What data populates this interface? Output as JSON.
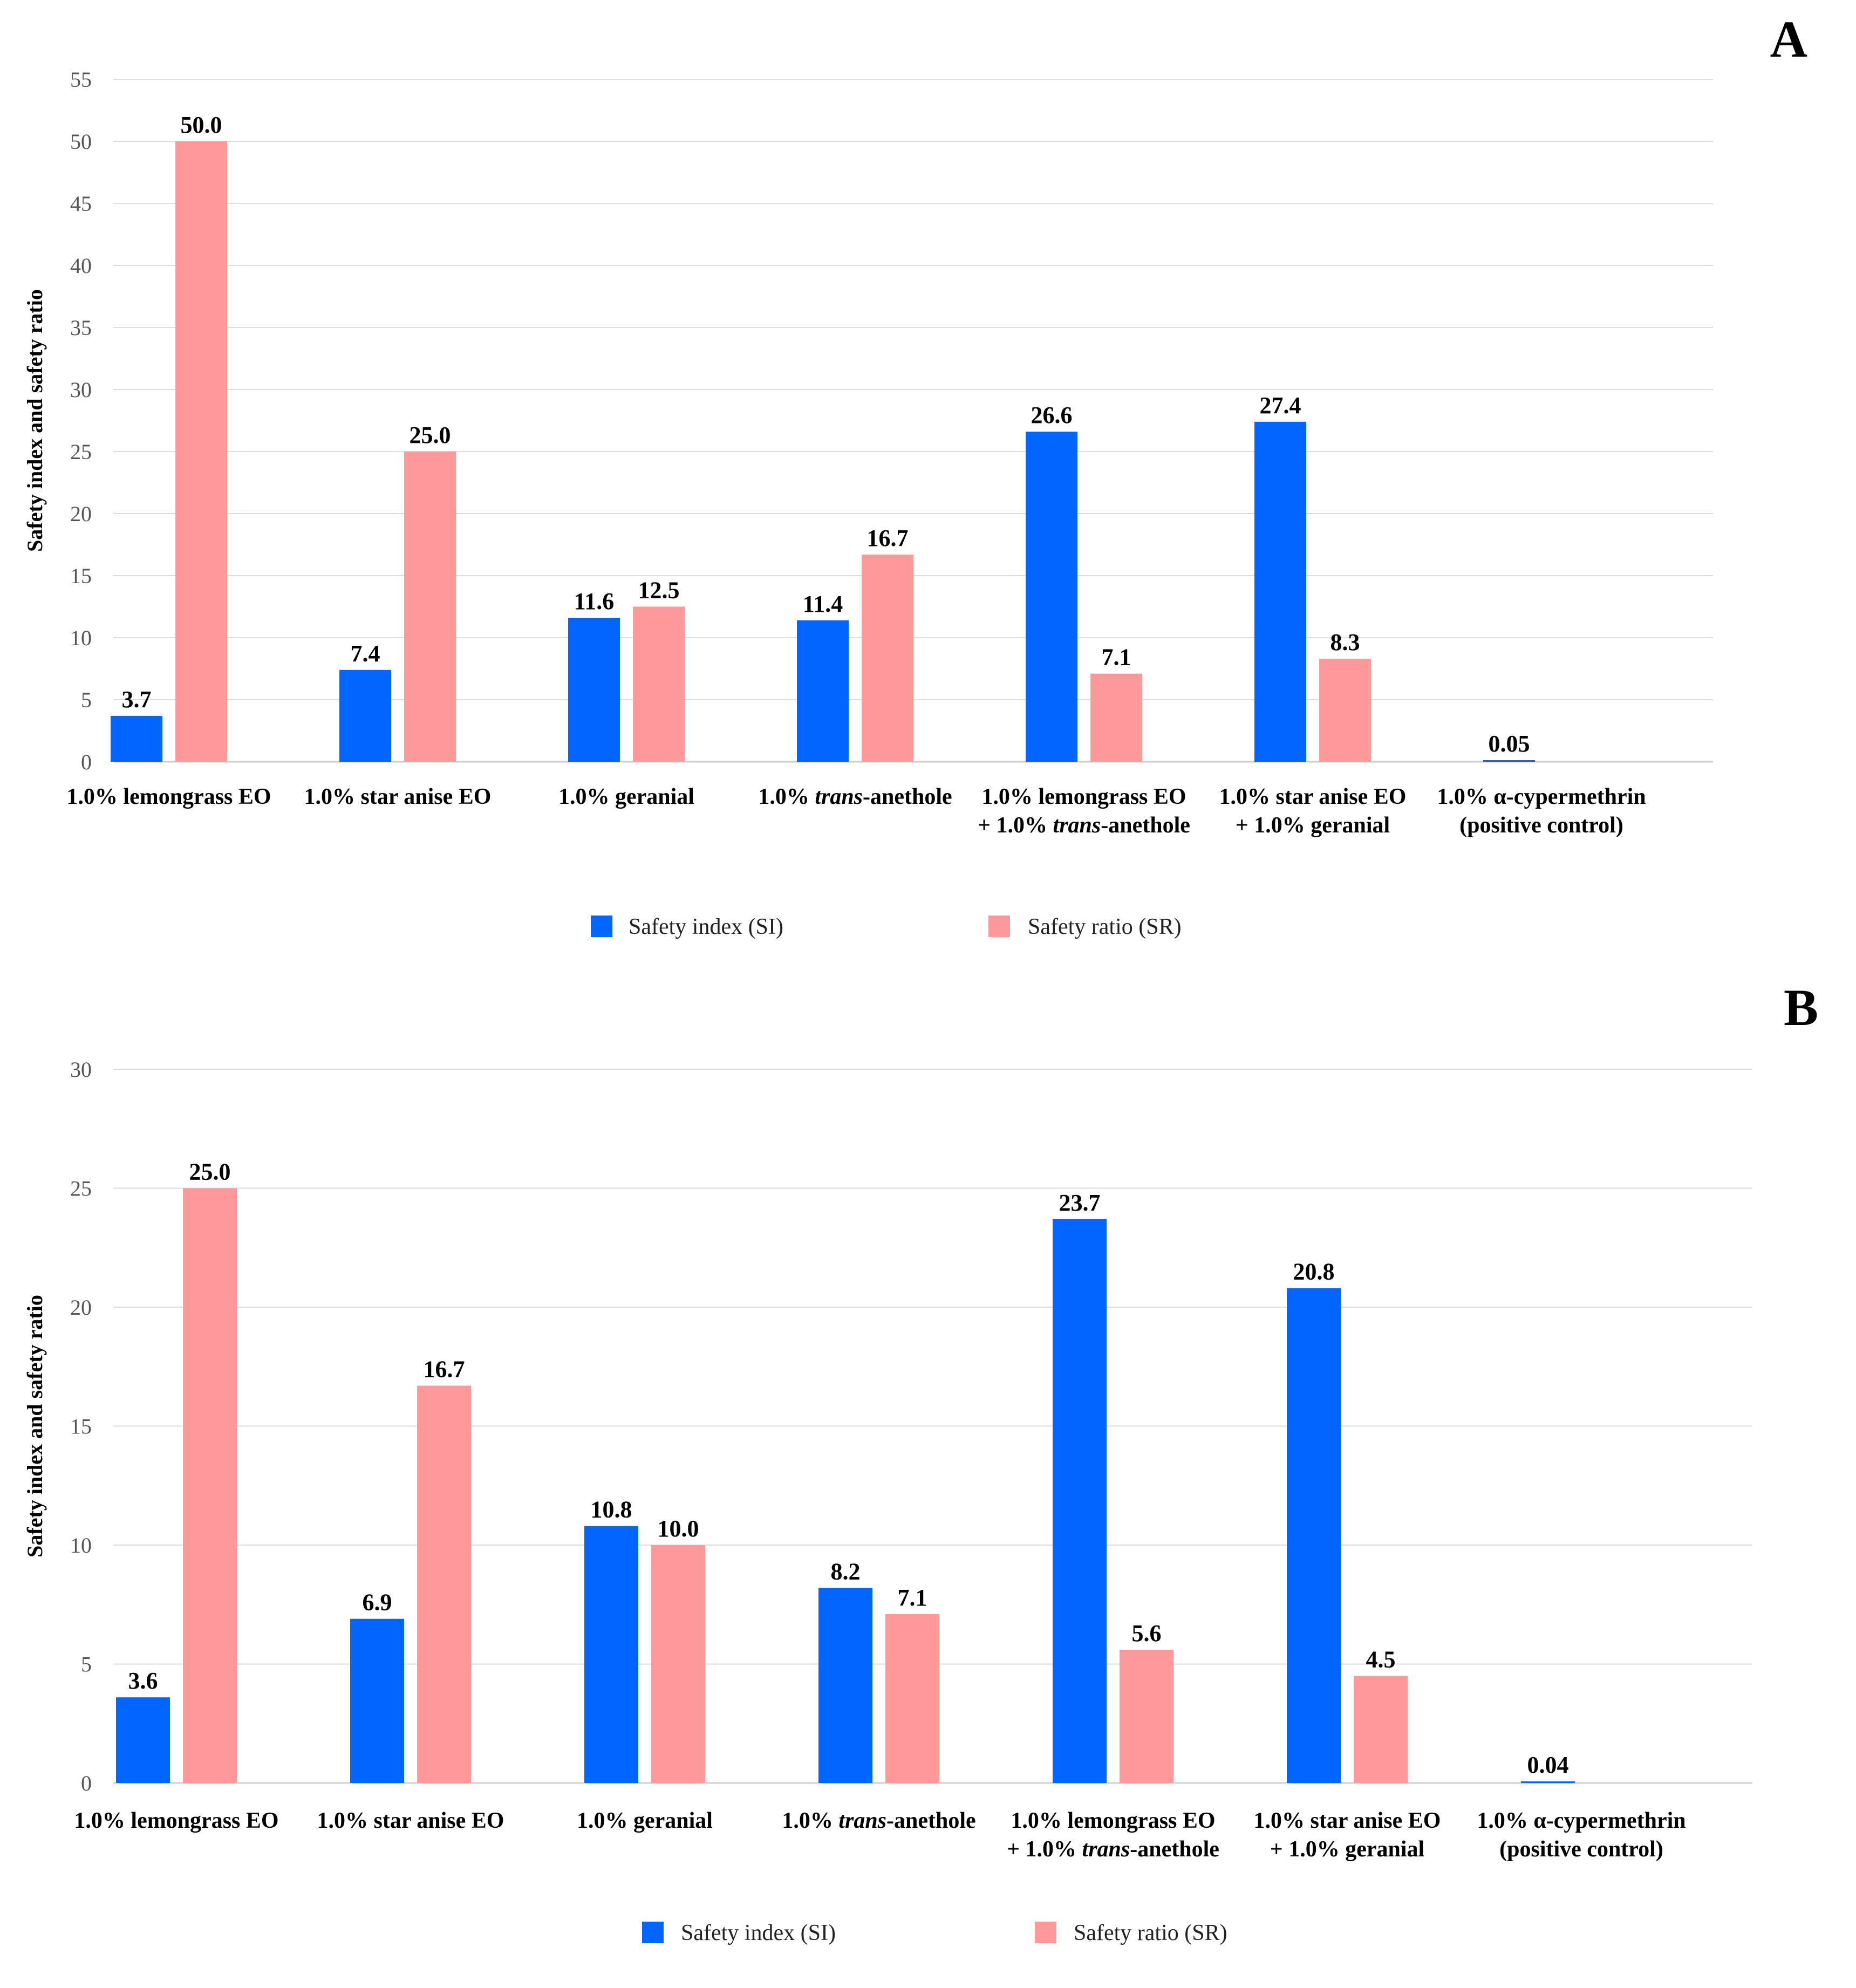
{
  "colors": {
    "si": "#0066ff",
    "sr": "#ff9999"
  },
  "chart_data": [
    {
      "type": "bar",
      "panel_label": "A",
      "ylabel": "Safety index and safety ratio",
      "ylim": [
        0,
        55
      ],
      "yticks": [
        "0",
        "5",
        "10",
        "15",
        "20",
        "25",
        "30",
        "35",
        "40",
        "45",
        "50",
        "55"
      ],
      "categories": [
        [
          "1.0% lemongrass EO"
        ],
        [
          "1.0% star anise EO"
        ],
        [
          "1.0% geranial"
        ],
        [
          "1.0% trans-anethole"
        ],
        [
          "1.0% lemongrass EO",
          "+ 1.0% trans-anethole"
        ],
        [
          "1.0% star anise EO",
          "+ 1.0% geranial"
        ],
        [
          "1.0% α-cypermethrin",
          "(positive control)"
        ]
      ],
      "series": [
        {
          "name": "Safety index (SI)",
          "values": [
            3.7,
            7.4,
            11.6,
            11.4,
            26.6,
            27.4,
            0.05
          ],
          "labels": [
            "3.7",
            "7.4",
            "11.6",
            "11.4",
            "26.6",
            "27.4",
            "0.05"
          ]
        },
        {
          "name": "Safety ratio (SR)",
          "values": [
            50.0,
            25.0,
            12.5,
            16.7,
            7.1,
            8.3,
            null
          ],
          "labels": [
            "50.0",
            "25.0",
            "12.5",
            "16.7",
            "7.1",
            "8.3",
            ""
          ]
        }
      ]
    },
    {
      "type": "bar",
      "panel_label": "B",
      "ylabel": "Safety index and safety ratio",
      "ylim": [
        0,
        30
      ],
      "yticks": [
        "0",
        "5",
        "10",
        "15",
        "20",
        "25",
        "30"
      ],
      "categories": [
        [
          "1.0% lemongrass EO"
        ],
        [
          "1.0% star anise EO"
        ],
        [
          "1.0% geranial"
        ],
        [
          "1.0% trans-anethole"
        ],
        [
          "1.0% lemongrass EO",
          "+ 1.0% trans-anethole"
        ],
        [
          "1.0% star anise EO",
          "+ 1.0% geranial"
        ],
        [
          "1.0% α-cypermethrin",
          "(positive control)"
        ]
      ],
      "series": [
        {
          "name": "Safety index (SI)",
          "values": [
            3.6,
            6.9,
            10.8,
            8.2,
            23.7,
            20.8,
            0.04
          ],
          "labels": [
            "3.6",
            "6.9",
            "10.8",
            "8.2",
            "23.7",
            "20.8",
            "0.04"
          ]
        },
        {
          "name": "Safety ratio (SR)",
          "values": [
            25.0,
            16.7,
            10.0,
            7.1,
            5.6,
            4.5,
            null
          ],
          "labels": [
            "25.0",
            "16.7",
            "10.0",
            "7.1",
            "5.6",
            "4.5",
            ""
          ]
        }
      ]
    }
  ]
}
